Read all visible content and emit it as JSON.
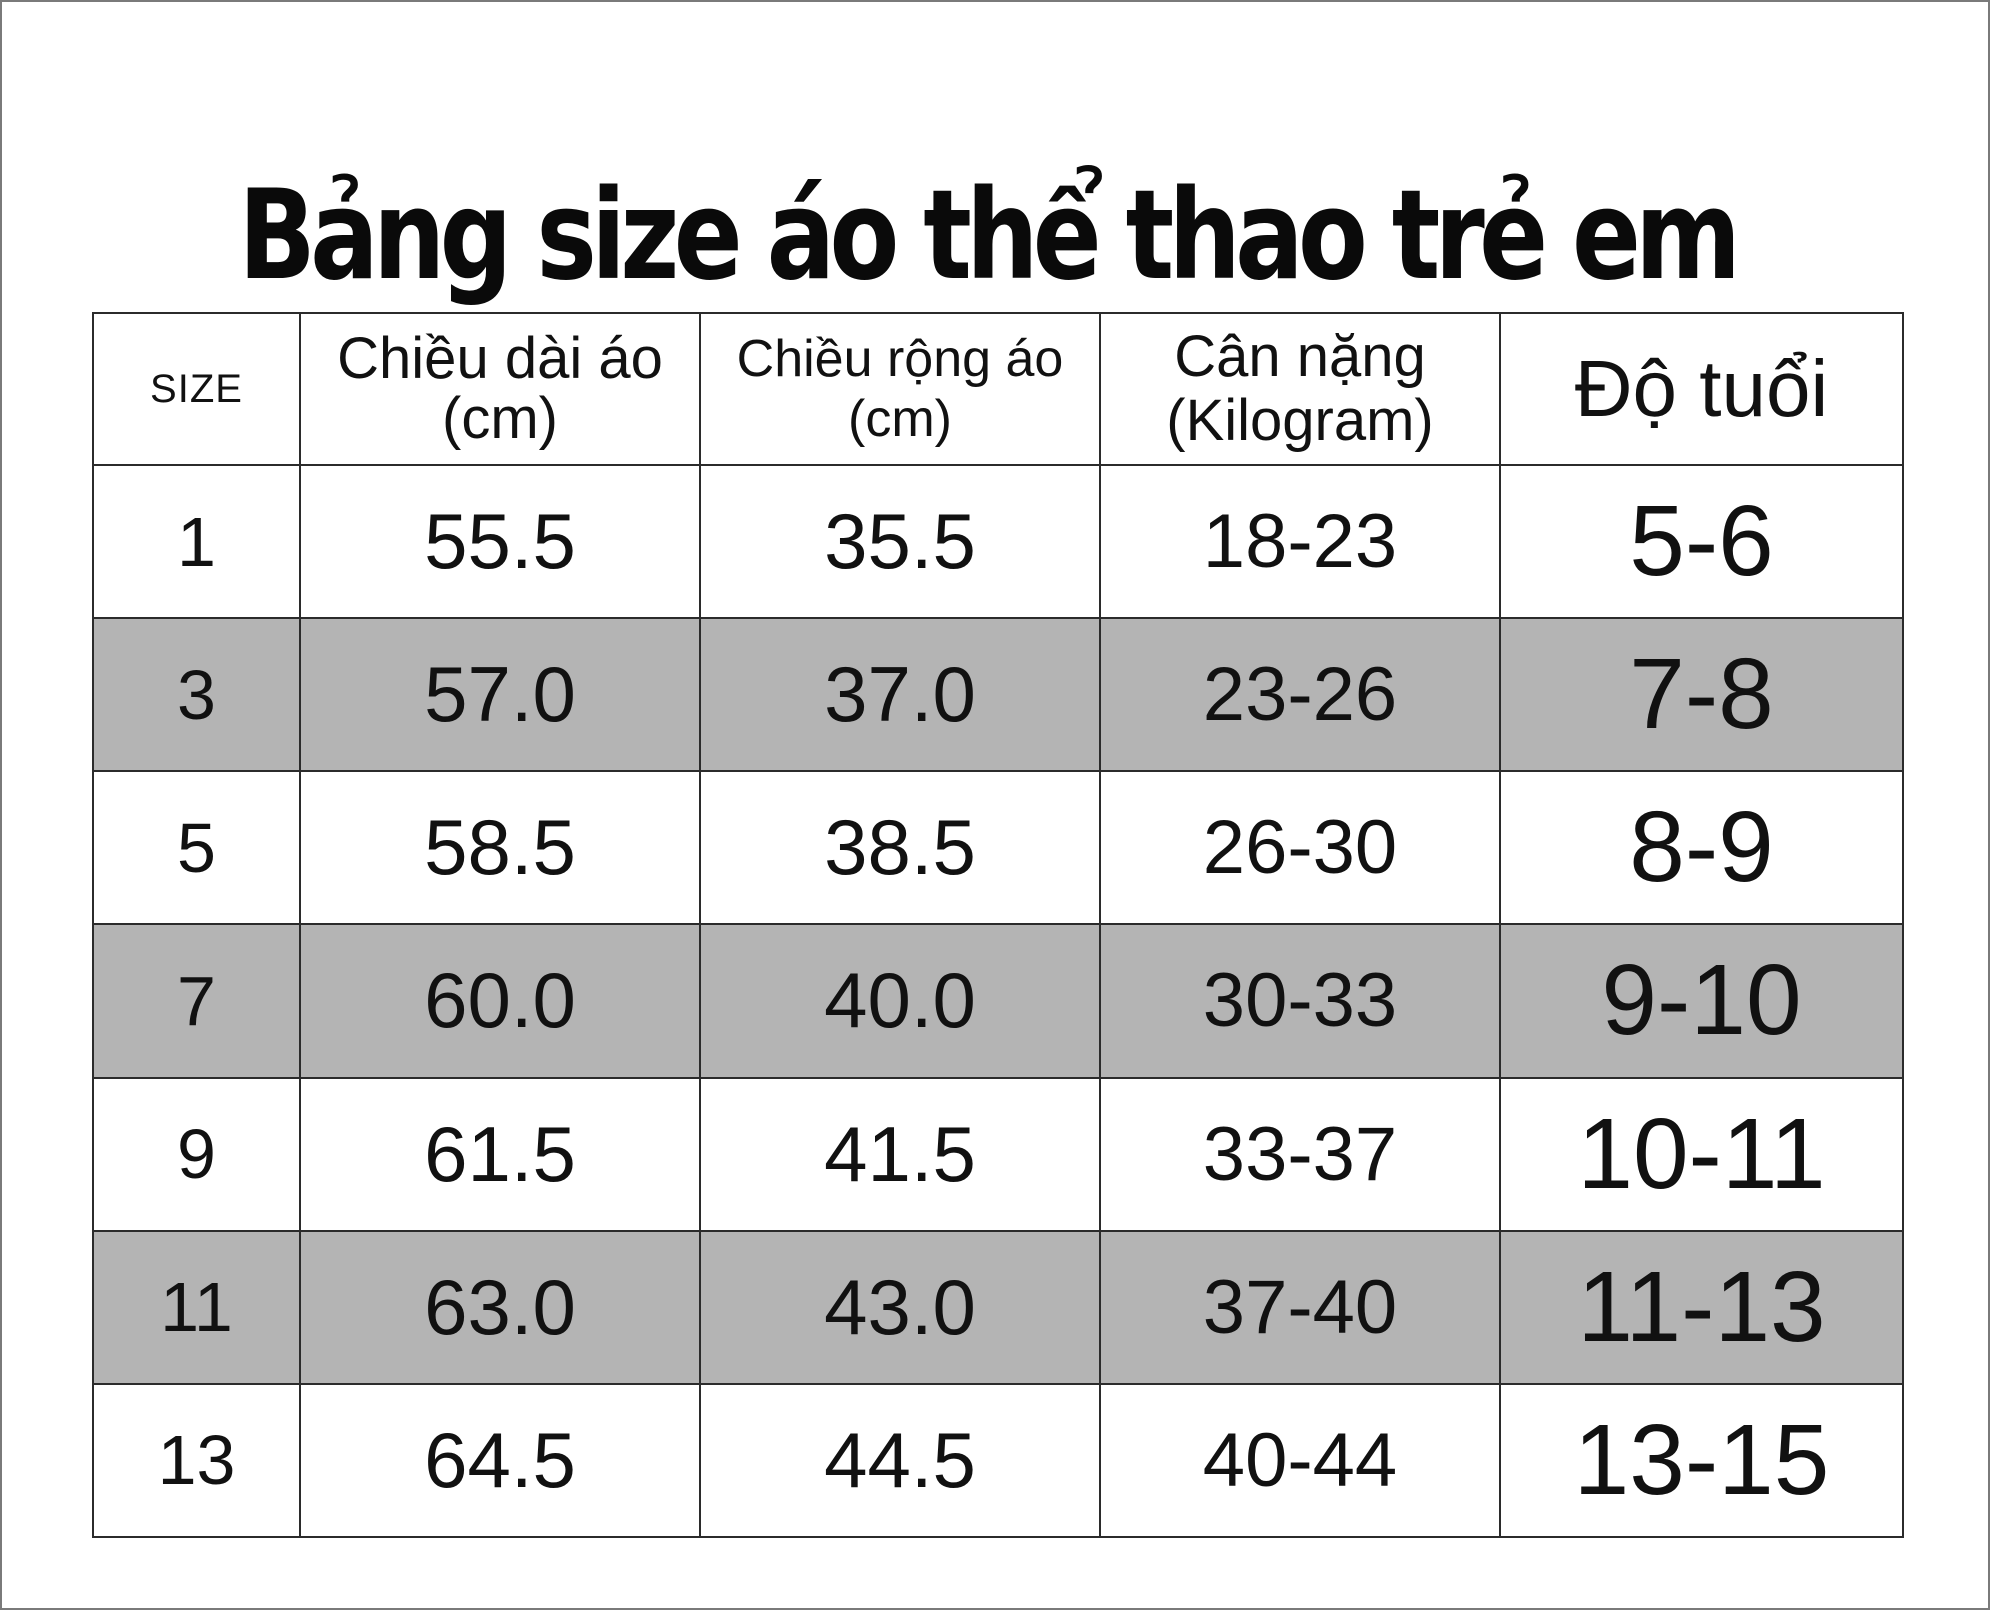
{
  "title": "Bảng size áo thể thao trẻ em",
  "table": {
    "headers": {
      "size": "SIZE",
      "length": {
        "line1": "Chiều dài áo",
        "line2": "(cm)"
      },
      "width": {
        "line1": "Chiều rộng áo",
        "line2": "(cm)"
      },
      "weight": {
        "line1": "Cân nặng",
        "line2": "(Kilogram)"
      },
      "age": "Độ tuổi"
    },
    "rows": [
      {
        "size": "1",
        "length": "55.5",
        "width": "35.5",
        "weight": "18-23",
        "age": "5-6"
      },
      {
        "size": "3",
        "length": "57.0",
        "width": "37.0",
        "weight": "23-26",
        "age": "7-8"
      },
      {
        "size": "5",
        "length": "58.5",
        "width": "38.5",
        "weight": "26-30",
        "age": "8-9"
      },
      {
        "size": "7",
        "length": "60.0",
        "width": "40.0",
        "weight": "30-33",
        "age": "9-10"
      },
      {
        "size": "9",
        "length": "61.5",
        "width": "41.5",
        "weight": "33-37",
        "age": "10-11"
      },
      {
        "size": "11",
        "length": "63.0",
        "width": "43.0",
        "weight": "37-40",
        "age": "11-13"
      },
      {
        "size": "13",
        "length": "64.5",
        "width": "44.5",
        "weight": "40-44",
        "age": "13-15"
      }
    ]
  },
  "colors": {
    "shaded_row": "#b4b4b4",
    "plain_row": "#ffffff",
    "grid": "#2b2b2b"
  }
}
